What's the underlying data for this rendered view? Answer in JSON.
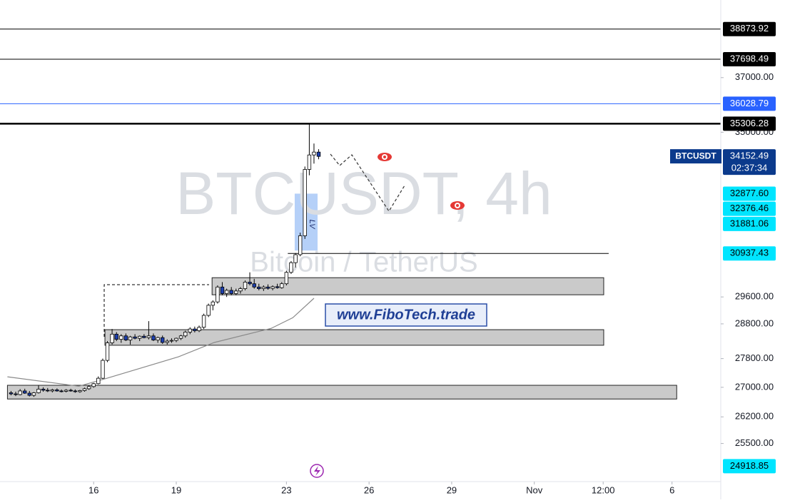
{
  "chart_data": {
    "type": "candlestick",
    "symbol": "BTCUSDT",
    "watermark": "BTCUSDT, 4h",
    "description": "Bitcoin / TetherUS",
    "annotation": "www.FiboTech.trade",
    "liquidity_label": "LV",
    "log_scale": true,
    "colors": {
      "up": "#ffffff",
      "down": "#1e40af",
      "wick": "#000000"
    },
    "x": [
      13,
      13.17,
      13.33,
      13.5,
      13.67,
      13.83,
      14,
      14.17,
      14.33,
      14.5,
      14.67,
      14.83,
      15,
      15.17,
      15.33,
      15.5,
      15.67,
      15.83,
      16,
      16.17,
      16.33,
      16.5,
      16.67,
      16.83,
      17,
      17.17,
      17.33,
      17.5,
      17.67,
      17.83,
      18,
      18.17,
      18.33,
      18.5,
      18.67,
      18.83,
      19,
      19.17,
      19.33,
      19.5,
      19.67,
      19.83,
      20,
      20.17,
      20.33,
      20.5,
      20.67,
      20.83,
      21,
      21.17,
      21.33,
      21.5,
      21.67,
      21.83,
      22,
      22.17,
      22.33,
      22.5,
      22.67,
      22.83,
      23,
      23.17,
      23.33,
      23.5,
      23.67,
      23.83,
      24,
      24.17
    ],
    "open": [
      26850,
      26820,
      26800,
      26900,
      26840,
      26780,
      26850,
      26950,
      26920,
      26900,
      26930,
      26900,
      26890,
      26920,
      26900,
      26880,
      26910,
      26960,
      27020,
      27100,
      27250,
      27750,
      28250,
      28500,
      28350,
      28450,
      28330,
      28420,
      28380,
      28440,
      28400,
      28450,
      28330,
      28400,
      28260,
      28300,
      28320,
      28380,
      28450,
      28560,
      28650,
      28600,
      28700,
      29050,
      29350,
      29450,
      29900,
      29700,
      29800,
      29700,
      29780,
      29850,
      30050,
      30000,
      29900,
      29850,
      29900,
      29860,
      29910,
      29880,
      30000,
      30350,
      30650,
      30900,
      31500,
      33700,
      34200,
      34300
    ],
    "high": [
      26900,
      26880,
      26950,
      26960,
      26900,
      26870,
      27050,
      27000,
      26980,
      26960,
      26970,
      26940,
      26950,
      26960,
      26940,
      26930,
      26990,
      27050,
      27120,
      27300,
      27800,
      28300,
      28650,
      28560,
      28500,
      28520,
      28450,
      28500,
      28460,
      28500,
      28880,
      28520,
      28430,
      28460,
      28350,
      28380,
      28400,
      28480,
      28600,
      28700,
      28720,
      28750,
      29100,
      29400,
      29500,
      29950,
      30050,
      29850,
      29900,
      29850,
      29900,
      30100,
      30350,
      30150,
      30000,
      29950,
      29980,
      29950,
      30000,
      30050,
      30400,
      30700,
      30950,
      31600,
      33800,
      35300,
      34600,
      34400
    ],
    "low": [
      26780,
      26760,
      26780,
      26820,
      26750,
      26740,
      26830,
      26880,
      26870,
      26860,
      26880,
      26860,
      26860,
      26880,
      26850,
      26850,
      26880,
      26930,
      26990,
      27080,
      27230,
      27700,
      28200,
      28300,
      28250,
      28300,
      28200,
      28350,
      28300,
      28380,
      28350,
      28300,
      28250,
      28220,
      28200,
      28250,
      28270,
      28330,
      28400,
      28500,
      28550,
      28560,
      28650,
      29000,
      29200,
      29400,
      29650,
      29600,
      29650,
      29650,
      29700,
      29800,
      29950,
      29850,
      29800,
      29780,
      29820,
      29800,
      29850,
      29850,
      29950,
      30300,
      30500,
      30850,
      31400,
      33500,
      33900,
      34050
    ],
    "close": [
      26820,
      26800,
      26900,
      26840,
      26780,
      26850,
      26950,
      26920,
      26900,
      26930,
      26900,
      26890,
      26920,
      26900,
      26880,
      26910,
      26960,
      27020,
      27100,
      27250,
      27750,
      28250,
      28500,
      28350,
      28450,
      28330,
      28420,
      28380,
      28440,
      28400,
      28450,
      28330,
      28400,
      28260,
      28300,
      28320,
      28380,
      28450,
      28560,
      28650,
      28600,
      28700,
      29050,
      29350,
      29450,
      29900,
      29700,
      29800,
      29700,
      29780,
      29850,
      30050,
      30000,
      29900,
      29850,
      29900,
      29860,
      29910,
      29880,
      30000,
      30350,
      30650,
      30900,
      31500,
      33700,
      34200,
      34300,
      34150
    ],
    "xlim": [
      12.6,
      38.77
    ],
    "xticks": [
      16,
      19,
      23,
      26,
      29,
      {
        "value": 32,
        "label": "Nov"
      },
      {
        "value": 34.5,
        "label": "12:00"
      },
      {
        "value": 37,
        "label": "6"
      }
    ],
    "ylim": [
      24530,
      40040
    ],
    "yticks": [
      {
        "value": 37000,
        "label": "37000.00"
      },
      {
        "value": 35000,
        "label": "35000.00"
      },
      {
        "value": 29600,
        "label": "29600.00"
      },
      {
        "value": 28800,
        "label": "28800.00"
      },
      {
        "value": 27800,
        "label": "27800.00"
      },
      {
        "value": 27000,
        "label": "27000.00"
      },
      {
        "value": 26200,
        "label": "26200.00"
      },
      {
        "value": 25500,
        "label": "25500.00"
      }
    ],
    "last_price": {
      "price": 34152.49,
      "countdown": "02:37:34",
      "color": "#0b3a8c"
    },
    "price_levels": [
      {
        "price": 38873.92,
        "color": "#000000",
        "text_color": "#ffffff",
        "line": true,
        "line_width": 1
      },
      {
        "price": 37698.49,
        "color": "#000000",
        "text_color": "#ffffff",
        "line": true,
        "line_width": 1
      },
      {
        "price": 36028.79,
        "color": "#2962ff",
        "text_color": "#ffffff",
        "line": true,
        "line_width": 1
      },
      {
        "price": 35306.28,
        "color": "#000000",
        "text_color": "#ffffff",
        "line": true,
        "line_width": 2.5
      },
      {
        "price": {
          "value": 32877.6,
          "label": "32877.60"
        },
        "color": "#00e5ff",
        "text_color": "#000000",
        "line": false
      },
      {
        "price": 32376.46,
        "color": "#00e5ff",
        "text_color": "#000000",
        "line": false
      },
      {
        "price": 31881.06,
        "color": "#00e5ff",
        "text_color": "#000000",
        "line": false
      },
      {
        "price": 30937.43,
        "color": "#00e5ff",
        "text_color": "#000000",
        "line": true,
        "line_width": 1,
        "line_xlim": [
          23.05,
          34.7
        ]
      },
      {
        "price": 24918.85,
        "color": "#00e5ff",
        "text_color": "#000000",
        "line": false
      }
    ],
    "moving_average": {
      "color": "#8a8a8a",
      "x": [
        12.87,
        15.46,
        16.49,
        19.08,
        20.38,
        22.45,
        23.23,
        24.0
      ],
      "values": [
        27290,
        27030,
        27250,
        27850,
        28260,
        28670,
        28980,
        29560
      ]
    },
    "zones": [
      {
        "xlim": [
          20.3,
          34.52
        ],
        "ylim": [
          29665,
          30185
        ],
        "color": "#c4c4c4"
      },
      {
        "xlim": [
          16.41,
          34.52
        ],
        "ylim": [
          28180,
          28630
        ],
        "color": "#c4c4c4"
      },
      {
        "xlim": [
          12.87,
          37.17
        ],
        "ylim": [
          26680,
          27055
        ],
        "color": "#c4c4c4"
      },
      {
        "xlim": [
          23.3,
          24.13
        ],
        "ylim": [
          31030,
          32880
        ],
        "color": "#9cc0f5"
      }
    ]
  }
}
